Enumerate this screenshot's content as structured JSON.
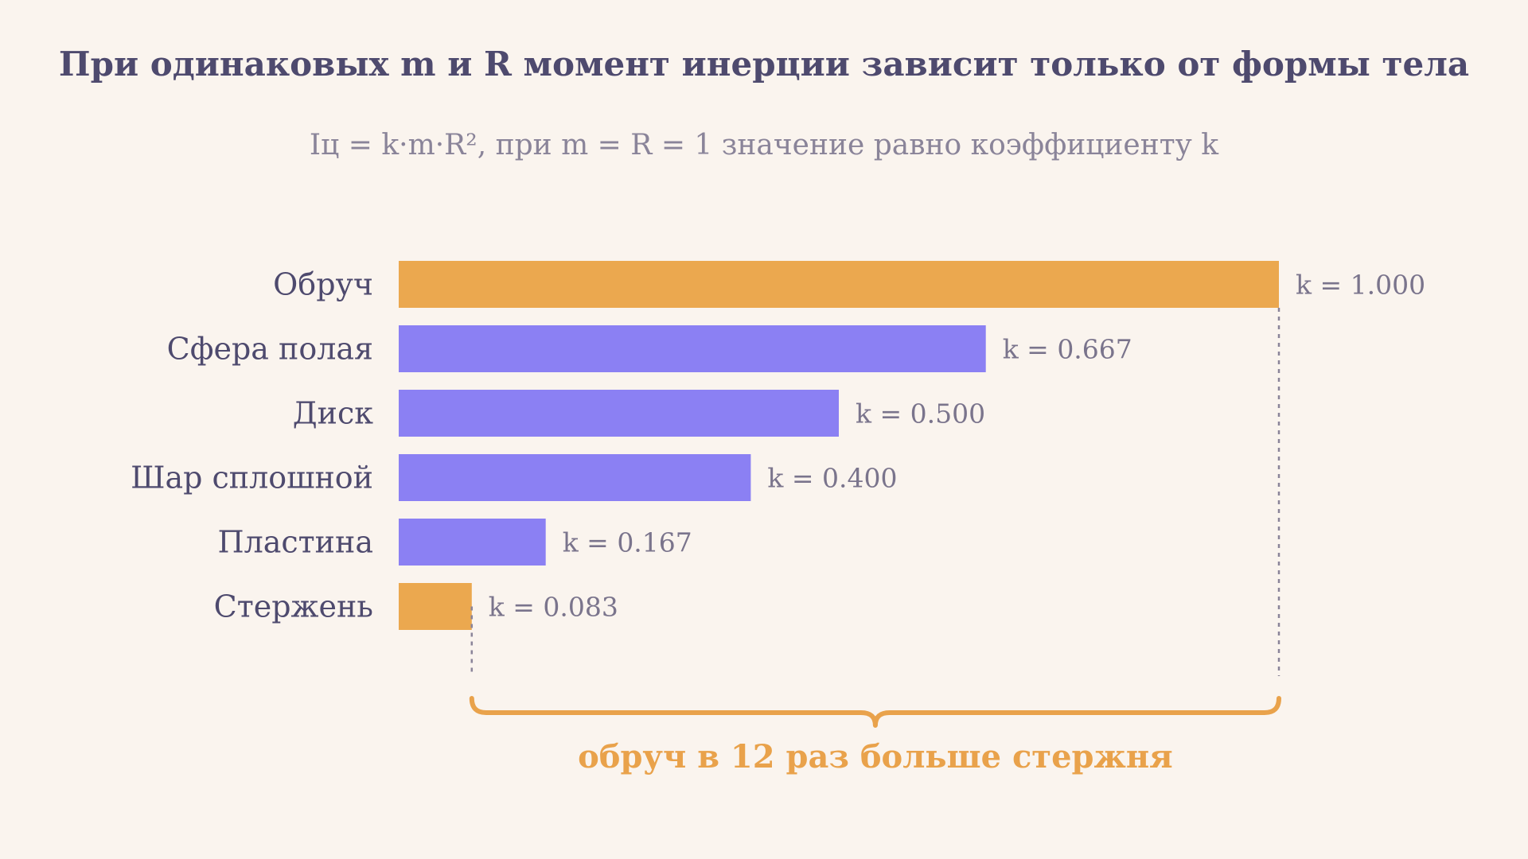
{
  "title": "При одинаковых m и R момент инерции зависит только от формы тела",
  "subtitle": "Iц = k·m·R², при m = R = 1 значение равно коэффициенту k",
  "chart_data": {
    "type": "bar",
    "orientation": "horizontal",
    "categories": [
      "Обруч",
      "Сфера полая",
      "Диск",
      "Шар сплошной",
      "Пластина",
      "Стержень"
    ],
    "values": [
      1.0,
      0.667,
      0.5,
      0.4,
      0.167,
      0.083
    ],
    "value_labels": [
      "k = 1.000",
      "k = 0.667",
      "k = 0.500",
      "k = 0.400",
      "k = 0.167",
      "k = 0.083"
    ],
    "xlim": [
      0,
      1
    ],
    "grid": false,
    "highlighted": [
      "Обруч",
      "Стержень"
    ],
    "annotation": "обруч в 12 раз больше стержня"
  },
  "colors": {
    "highlight": "#EBA84F",
    "bar": "#8B80F3",
    "bracket": "#E9A24B",
    "guide": "#8A8499"
  }
}
